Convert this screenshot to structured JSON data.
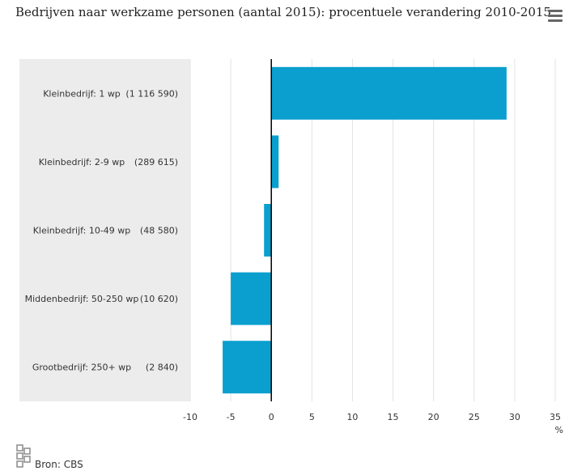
{
  "title": "Bedrijven naar werkzame personen (aantal 2015): procentuele verandering 2010-2015",
  "menu": {
    "icon": "hamburger-menu-icon"
  },
  "source": {
    "logo_icon": "cbs-logo-icon",
    "label": "Bron: CBS"
  },
  "colors": {
    "bar": "#0a9fce",
    "label_panel": "#ececec",
    "grid": "#e3e3e3",
    "zero_line": "#000000"
  },
  "chart_data": {
    "type": "bar",
    "orientation": "horizontal",
    "title": "Bedrijven naar werkzame personen (aantal 2015): procentuele verandering 2010-2015",
    "categories": [
      "Kleinbedrijf: 1 wp",
      "Kleinbedrijf: 2-9 wp",
      "Kleinbedrijf: 10-49 wp",
      "Middenbedrijf: 50-250 wp",
      "Grootbedrijf: 250+ wp"
    ],
    "category_counts": [
      "(1 116 590)",
      "(289 615)",
      "(48 580)",
      "(10 620)",
      "(2 840)"
    ],
    "values": [
      29,
      0.9,
      -0.9,
      -5,
      -6
    ],
    "xlim": [
      -10,
      35
    ],
    "xticks": [
      "-10",
      "-5",
      "0",
      "5",
      "10",
      "15",
      "20",
      "25",
      "30",
      "35"
    ],
    "xunit": "%",
    "grid": true,
    "legend": "none"
  }
}
